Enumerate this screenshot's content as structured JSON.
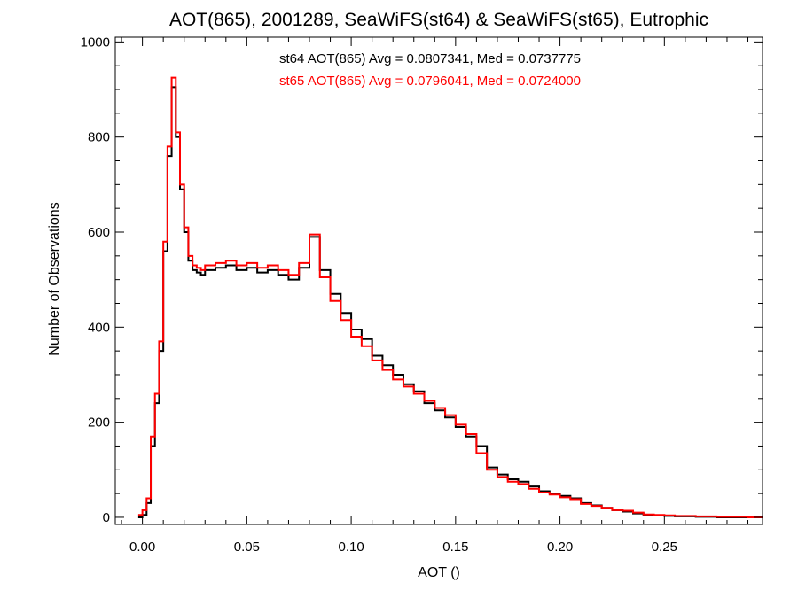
{
  "chart_data": {
    "type": "line",
    "title": "AOT(865), 2001289, SeaWiFS(st64) & SeaWiFS(st65), Eutrophic",
    "xlabel": "AOT ()",
    "ylabel": "Number of Observations",
    "xlim": [
      -0.013,
      0.297
    ],
    "ylim": [
      -15,
      1010
    ],
    "xticks": [
      0.0,
      0.05,
      0.1,
      0.15,
      0.2,
      0.25
    ],
    "xtick_labels": [
      "0.00",
      "0.05",
      "0.10",
      "0.15",
      "0.20",
      "0.25"
    ],
    "yticks": [
      0,
      200,
      400,
      600,
      800,
      1000
    ],
    "ytick_labels": [
      "0",
      "200",
      "400",
      "600",
      "800",
      "1000"
    ],
    "grid": false,
    "step": "histogram",
    "annotations": [
      {
        "text": "st64 AOT(865) Avg = 0.0807341, Med = 0.0737775",
        "color": "#000000"
      },
      {
        "text": "st65 AOT(865) Avg = 0.0796041, Med = 0.0724000",
        "color": "#ff0000"
      }
    ],
    "series": [
      {
        "color": "#000000",
        "x": [
          -0.002,
          0.0,
          0.002,
          0.004,
          0.006,
          0.008,
          0.01,
          0.012,
          0.014,
          0.016,
          0.018,
          0.02,
          0.022,
          0.024,
          0.026,
          0.028,
          0.03,
          0.035,
          0.04,
          0.045,
          0.05,
          0.055,
          0.06,
          0.065,
          0.07,
          0.075,
          0.08,
          0.085,
          0.09,
          0.095,
          0.1,
          0.105,
          0.11,
          0.115,
          0.12,
          0.125,
          0.13,
          0.135,
          0.14,
          0.145,
          0.15,
          0.155,
          0.16,
          0.165,
          0.17,
          0.175,
          0.18,
          0.185,
          0.19,
          0.195,
          0.2,
          0.205,
          0.21,
          0.215,
          0.22,
          0.225,
          0.23,
          0.235,
          0.24,
          0.245,
          0.25,
          0.255,
          0.26,
          0.265,
          0.27,
          0.275,
          0.28,
          0.285,
          0.29,
          0.297
        ],
        "y": [
          0,
          5,
          30,
          150,
          240,
          350,
          560,
          760,
          905,
          800,
          690,
          600,
          540,
          520,
          515,
          510,
          520,
          525,
          530,
          520,
          525,
          515,
          520,
          510,
          500,
          525,
          590,
          520,
          470,
          430,
          395,
          375,
          340,
          320,
          300,
          280,
          265,
          240,
          225,
          210,
          190,
          170,
          150,
          105,
          90,
          80,
          75,
          65,
          55,
          50,
          45,
          40,
          30,
          25,
          20,
          15,
          12,
          8,
          5,
          4,
          3,
          2,
          2,
          1,
          1,
          0,
          0,
          0,
          0,
          0
        ]
      },
      {
        "color": "#ff0000",
        "x": [
          -0.002,
          0.0,
          0.002,
          0.004,
          0.006,
          0.008,
          0.01,
          0.012,
          0.014,
          0.016,
          0.018,
          0.02,
          0.022,
          0.024,
          0.026,
          0.028,
          0.03,
          0.035,
          0.04,
          0.045,
          0.05,
          0.055,
          0.06,
          0.065,
          0.07,
          0.075,
          0.08,
          0.085,
          0.09,
          0.095,
          0.1,
          0.105,
          0.11,
          0.115,
          0.12,
          0.125,
          0.13,
          0.135,
          0.14,
          0.145,
          0.15,
          0.155,
          0.16,
          0.165,
          0.17,
          0.175,
          0.18,
          0.185,
          0.19,
          0.195,
          0.2,
          0.205,
          0.21,
          0.215,
          0.22,
          0.225,
          0.23,
          0.235,
          0.24,
          0.245,
          0.25,
          0.255,
          0.26,
          0.265,
          0.27,
          0.275,
          0.28,
          0.285,
          0.29,
          0.297
        ],
        "y": [
          5,
          15,
          40,
          170,
          260,
          370,
          580,
          780,
          925,
          810,
          700,
          610,
          550,
          530,
          525,
          520,
          530,
          535,
          540,
          530,
          535,
          525,
          530,
          520,
          510,
          535,
          595,
          505,
          455,
          415,
          380,
          360,
          330,
          310,
          290,
          275,
          260,
          245,
          230,
          215,
          195,
          175,
          135,
          100,
          85,
          75,
          70,
          60,
          52,
          48,
          42,
          38,
          28,
          24,
          20,
          15,
          14,
          10,
          6,
          5,
          4,
          3,
          3,
          2,
          2,
          1,
          1,
          1,
          0,
          0
        ]
      }
    ]
  }
}
